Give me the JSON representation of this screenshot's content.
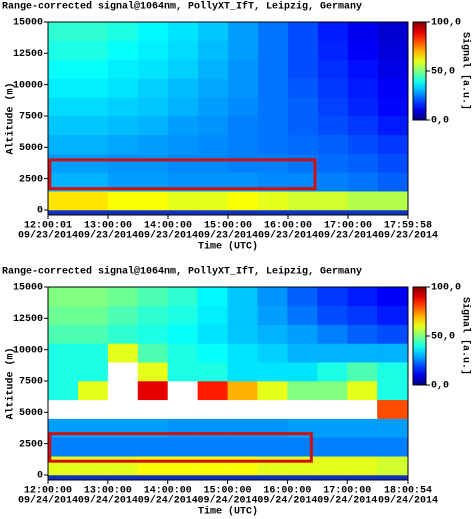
{
  "chart_data": [
    {
      "type": "heatmap",
      "title": "Range-corrected signal@1064nm, PollyXT_IfT, Leipzig, Germany",
      "xlabel": "Time (UTC)",
      "ylabel": "Altitude (m)",
      "colorbar_label": "Signal [a.u.]",
      "xlim": [
        12.0003,
        17.9994
      ],
      "xticks": [
        {
          "value": 12.0003,
          "label": [
            "12:00:01",
            "09/23/2014"
          ]
        },
        {
          "value": 13,
          "label": [
            "13:00:00",
            "09/23/2014"
          ]
        },
        {
          "value": 14,
          "label": [
            "14:00:00",
            "09/23/2014"
          ]
        },
        {
          "value": 15,
          "label": [
            "15:00:00",
            "09/23/2014"
          ]
        },
        {
          "value": 16,
          "label": [
            "16:00:00",
            "09/23/2014"
          ]
        },
        {
          "value": 17,
          "label": [
            "17:00:00",
            "09/23/2014"
          ]
        },
        {
          "value": 17.9994,
          "label": [
            "17:59:58",
            "09/23/2014"
          ]
        }
      ],
      "ylim": [
        -400,
        15000
      ],
      "yticks": [
        0,
        2500,
        5000,
        7500,
        10000,
        12500,
        15000
      ],
      "zlim": [
        0,
        100
      ],
      "zticks": [
        {
          "value": 100,
          "label": "100,0"
        },
        {
          "value": 50,
          "label": "50,0"
        },
        {
          "value": 0,
          "label": "0,0"
        }
      ],
      "colormap": "jet",
      "x_bins": [
        12.0003,
        12.5,
        13,
        13.5,
        14,
        14.5,
        15,
        15.5,
        16,
        16.5,
        17,
        17.5,
        17.9994
      ],
      "y_bins": [
        0,
        1500,
        3000,
        4500,
        6000,
        7500,
        9000,
        10500,
        12000,
        13500,
        15000
      ],
      "z": [
        [
          65,
          65,
          62,
          62,
          60,
          60,
          62,
          60,
          58,
          58,
          55,
          55
        ],
        [
          30,
          30,
          28,
          28,
          27,
          27,
          27,
          26,
          26,
          25,
          24,
          22
        ],
        [
          28,
          28,
          27,
          27,
          26,
          26,
          25,
          25,
          24,
          23,
          22,
          20
        ],
        [
          30,
          30,
          29,
          28,
          27,
          26,
          25,
          24,
          23,
          22,
          20,
          18
        ],
        [
          32,
          32,
          31,
          30,
          28,
          27,
          25,
          24,
          22,
          20,
          18,
          15
        ],
        [
          34,
          34,
          33,
          32,
          30,
          28,
          26,
          24,
          22,
          19,
          16,
          13
        ],
        [
          36,
          36,
          35,
          33,
          31,
          29,
          27,
          24,
          21,
          18,
          15,
          12
        ],
        [
          38,
          38,
          36,
          35,
          33,
          30,
          27,
          24,
          20,
          17,
          14,
          10
        ],
        [
          40,
          40,
          38,
          36,
          34,
          31,
          28,
          24,
          20,
          16,
          12,
          9
        ],
        [
          42,
          42,
          40,
          37,
          35,
          32,
          28,
          24,
          20,
          15,
          11,
          8
        ]
      ],
      "highlight": {
        "x": [
          12.03,
          16.45
        ],
        "y": [
          1700,
          4000
        ],
        "color": "#d01010"
      }
    },
    {
      "type": "heatmap",
      "title": "Range-corrected signal@1064nm, PollyXT_IfT, Leipzig, Germany",
      "xlabel": "Time (UTC)",
      "ylabel": "Altitude (m)",
      "colorbar_label": "Signal [a.u.]",
      "xlim": [
        12,
        18.015
      ],
      "xticks": [
        {
          "value": 12,
          "label": [
            "12:00:00",
            "09/24/2014"
          ]
        },
        {
          "value": 13,
          "label": [
            "13:00:00",
            "09/24/2014"
          ]
        },
        {
          "value": 14,
          "label": [
            "14:00:00",
            "09/24/2014"
          ]
        },
        {
          "value": 15,
          "label": [
            "15:00:00",
            "09/24/2014"
          ]
        },
        {
          "value": 16,
          "label": [
            "16:00:00",
            "09/24/2014"
          ]
        },
        {
          "value": 17,
          "label": [
            "17:00:00",
            "09/24/2014"
          ]
        },
        {
          "value": 18.015,
          "label": [
            "18:00:54",
            "09/24/2014"
          ]
        }
      ],
      "ylim": [
        -400,
        15000
      ],
      "yticks": [
        0,
        2500,
        5000,
        7500,
        10000,
        12500,
        15000
      ],
      "zlim": [
        0,
        100
      ],
      "zticks": [
        {
          "value": 100,
          "label": "100,0"
        },
        {
          "value": 50,
          "label": "50,0"
        },
        {
          "value": 0,
          "label": "0,0"
        }
      ],
      "colormap": "jet",
      "x_bins": [
        12,
        12.5,
        13,
        13.5,
        14,
        14.5,
        15,
        15.5,
        16,
        16.5,
        17,
        17.5,
        18.015
      ],
      "y_bins": [
        0,
        1500,
        3000,
        4500,
        6000,
        7500,
        9000,
        10500,
        12000,
        13500,
        15000
      ],
      "z": [
        [
          60,
          60,
          60,
          62,
          62,
          62,
          62,
          60,
          60,
          60,
          60,
          58
        ],
        [
          25,
          25,
          25,
          25,
          25,
          25,
          25,
          25,
          25,
          25,
          25,
          25
        ],
        [
          28,
          28,
          28,
          28,
          27,
          27,
          27,
          27,
          28,
          28,
          28,
          28
        ],
        [
          110,
          110,
          110,
          110,
          110,
          110,
          110,
          110,
          110,
          110,
          110,
          80
        ],
        [
          40,
          60,
          110,
          90,
          110,
          85,
          70,
          60,
          50,
          50,
          60,
          40
        ],
        [
          40,
          40,
          110,
          60,
          40,
          40,
          35,
          35,
          35,
          40,
          45,
          40
        ],
        [
          40,
          40,
          60,
          45,
          40,
          38,
          35,
          33,
          30,
          30,
          30,
          30
        ],
        [
          45,
          45,
          42,
          40,
          38,
          35,
          32,
          30,
          28,
          25,
          22,
          20
        ],
        [
          48,
          48,
          45,
          42,
          40,
          36,
          32,
          28,
          24,
          20,
          18,
          15
        ],
        [
          50,
          50,
          48,
          45,
          42,
          37,
          32,
          27,
          22,
          18,
          15,
          12
        ]
      ],
      "highlight": {
        "x": [
          12.03,
          16.4
        ],
        "y": [
          1100,
          3300
        ],
        "color": "#d01010"
      }
    }
  ]
}
